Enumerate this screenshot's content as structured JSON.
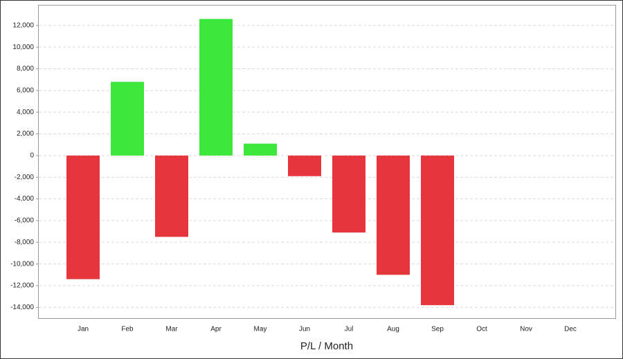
{
  "chart_data": {
    "type": "bar",
    "title": "P/L / Month",
    "categories": [
      "Jan",
      "Feb",
      "Mar",
      "Apr",
      "May",
      "Jun",
      "Jul",
      "Aug",
      "Sep",
      "Oct",
      "Nov",
      "Dec"
    ],
    "values": [
      -11400,
      6800,
      -7500,
      12600,
      1100,
      -1900,
      -7100,
      -11000,
      -13800,
      null,
      null,
      null
    ],
    "positive_color": "#3de83d",
    "negative_color": "#e5363d",
    "ylim": [
      -15000,
      13900
    ],
    "yticks": [
      {
        "value": -14000,
        "label": "-14,000"
      },
      {
        "value": -12000,
        "label": "-12,000"
      },
      {
        "value": -10000,
        "label": "-10,000"
      },
      {
        "value": -8000,
        "label": "-8,000"
      },
      {
        "value": -6000,
        "label": "-6,000"
      },
      {
        "value": -4000,
        "label": "-4,000"
      },
      {
        "value": -2000,
        "label": "-2,000"
      },
      0,
      {
        "value": 2000,
        "label": "2,000"
      },
      {
        "value": 4000,
        "label": "4,000"
      },
      {
        "value": 6000,
        "label": "6,000"
      },
      {
        "value": 8000,
        "label": "8,000"
      },
      {
        "value": 10000,
        "label": "10,000"
      },
      {
        "value": 12000,
        "label": "12,000"
      }
    ],
    "grid": true
  }
}
